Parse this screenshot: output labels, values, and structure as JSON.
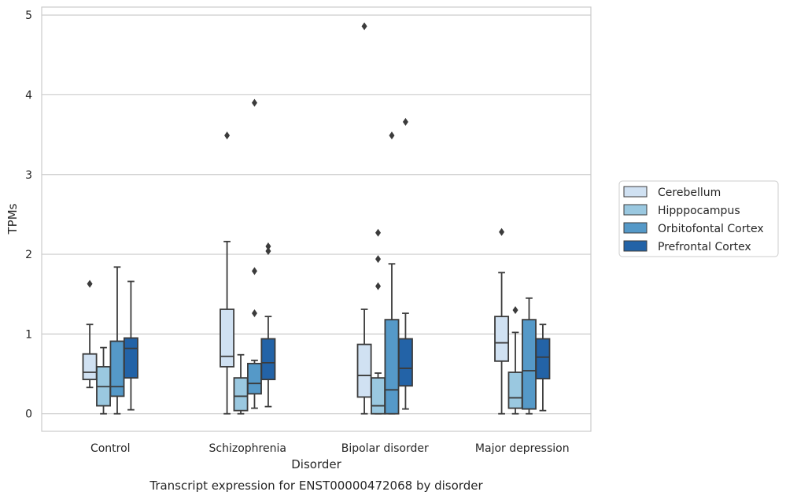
{
  "chart_data": {
    "type": "box",
    "title": "",
    "caption": "Transcript expression for ENST00000472068 by disorder",
    "xlabel": "Disorder",
    "ylabel": "TPMs",
    "ylim": [
      -0.22,
      5.1
    ],
    "yticks": [
      0,
      1,
      2,
      3,
      4,
      5
    ],
    "grid": "horizontal",
    "legend_position": "right",
    "categories": [
      "Control",
      "Schizophrenia",
      "Bipolar disorder",
      "Major depression"
    ],
    "series": [
      {
        "name": "Cerebellum",
        "color": "#d0e1f2",
        "boxes": [
          {
            "whisker_low": 0.33,
            "q1": 0.43,
            "median": 0.52,
            "q3": 0.75,
            "whisker_high": 1.12,
            "outliers": [
              1.63
            ]
          },
          {
            "whisker_low": 0.0,
            "q1": 0.59,
            "median": 0.72,
            "q3": 1.31,
            "whisker_high": 2.16,
            "outliers": [
              3.49
            ]
          },
          {
            "whisker_low": 0.0,
            "q1": 0.21,
            "median": 0.48,
            "q3": 0.87,
            "whisker_high": 1.31,
            "outliers": [
              4.86
            ]
          },
          {
            "whisker_low": 0.0,
            "q1": 0.66,
            "median": 0.89,
            "q3": 1.22,
            "whisker_high": 1.77,
            "outliers": [
              2.28
            ]
          }
        ]
      },
      {
        "name": "Hipppocampus",
        "color": "#9ac8e0",
        "boxes": [
          {
            "whisker_low": 0.0,
            "q1": 0.1,
            "median": 0.34,
            "q3": 0.59,
            "whisker_high": 0.83,
            "outliers": []
          },
          {
            "whisker_low": 0.0,
            "q1": 0.04,
            "median": 0.22,
            "q3": 0.45,
            "whisker_high": 0.74,
            "outliers": []
          },
          {
            "whisker_low": 0.0,
            "q1": 0.0,
            "median": 0.1,
            "q3": 0.45,
            "whisker_high": 0.51,
            "outliers": [
              1.6,
              1.94,
              2.27
            ]
          },
          {
            "whisker_low": 0.0,
            "q1": 0.07,
            "median": 0.2,
            "q3": 0.52,
            "whisker_high": 1.02,
            "outliers": [
              1.3
            ]
          }
        ]
      },
      {
        "name": "Orbitofontal Cortex",
        "color": "#5599c8",
        "boxes": [
          {
            "whisker_low": 0.0,
            "q1": 0.22,
            "median": 0.34,
            "q3": 0.91,
            "whisker_high": 1.84,
            "outliers": []
          },
          {
            "whisker_low": 0.07,
            "q1": 0.25,
            "median": 0.38,
            "q3": 0.63,
            "whisker_high": 0.67,
            "outliers": [
              1.26,
              1.79,
              3.9
            ]
          },
          {
            "whisker_low": 0.0,
            "q1": 0.0,
            "median": 0.3,
            "q3": 1.18,
            "whisker_high": 1.88,
            "outliers": [
              3.49
            ]
          },
          {
            "whisker_low": 0.0,
            "q1": 0.06,
            "median": 0.54,
            "q3": 1.18,
            "whisker_high": 1.45,
            "outliers": []
          }
        ]
      },
      {
        "name": "Prefrontal Cortex",
        "color": "#2363a7",
        "boxes": [
          {
            "whisker_low": 0.05,
            "q1": 0.45,
            "median": 0.82,
            "q3": 0.95,
            "whisker_high": 1.66,
            "outliers": []
          },
          {
            "whisker_low": 0.09,
            "q1": 0.43,
            "median": 0.64,
            "q3": 0.94,
            "whisker_high": 1.22,
            "outliers": [
              2.04,
              2.1
            ]
          },
          {
            "whisker_low": 0.06,
            "q1": 0.35,
            "median": 0.57,
            "q3": 0.94,
            "whisker_high": 1.26,
            "outliers": [
              3.66
            ]
          },
          {
            "whisker_low": 0.04,
            "q1": 0.44,
            "median": 0.71,
            "q3": 0.94,
            "whisker_high": 1.12,
            "outliers": []
          }
        ]
      }
    ]
  }
}
